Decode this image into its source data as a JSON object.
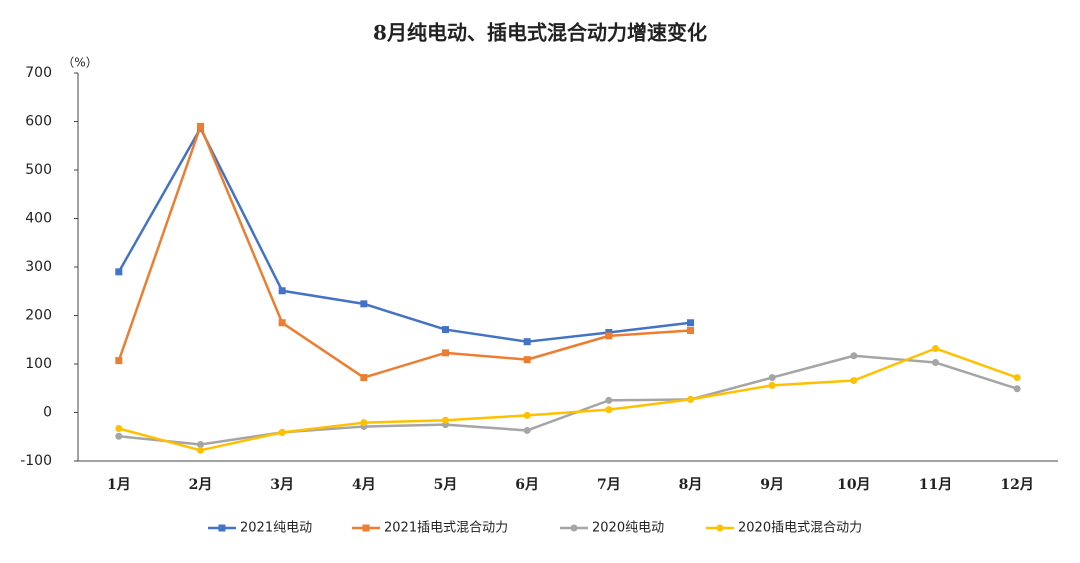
{
  "chart_data": {
    "type": "line",
    "title": "8月纯电动、插电式混合动力增速变化",
    "y_unit": "（%）",
    "categories": [
      "1月",
      "2月",
      "3月",
      "4月",
      "5月",
      "6月",
      "7月",
      "8月",
      "9月",
      "10月",
      "11月",
      "12月"
    ],
    "series": [
      {
        "name": "2021纯电动",
        "color": "#4472c4",
        "marker": "square",
        "values": [
          290,
          586,
          251,
          224,
          171,
          146,
          165,
          185,
          null,
          null,
          null,
          null
        ]
      },
      {
        "name": "2021插电式混合动力",
        "color": "#ed7d31",
        "marker": "square",
        "values": [
          107,
          590,
          185,
          72,
          123,
          109,
          158,
          169,
          null,
          null,
          null,
          null
        ]
      },
      {
        "name": "2020纯电动",
        "color": "#a5a5a5",
        "marker": "circle",
        "values": [
          -49,
          -66,
          -41,
          -29,
          -25,
          -37,
          25,
          27,
          72,
          117,
          103,
          49
        ]
      },
      {
        "name": "2020插电式混合动力",
        "color": "#ffc000",
        "marker": "circle",
        "values": [
          -33,
          -78,
          -41,
          -21,
          -16,
          -6,
          6,
          27,
          56,
          66,
          132,
          72
        ]
      }
    ],
    "ylim": [
      -100,
      700
    ],
    "yticks": [
      -100,
      0,
      100,
      200,
      300,
      400,
      500,
      600,
      700
    ],
    "grid": false,
    "legend": "bottom"
  }
}
